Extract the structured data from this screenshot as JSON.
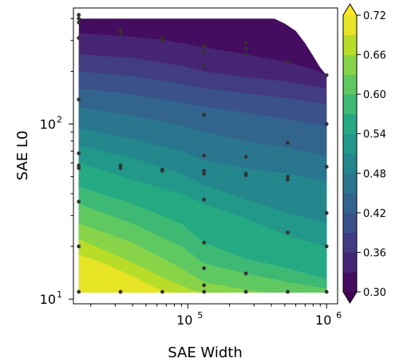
{
  "chart_data": {
    "type": "contour",
    "title": "",
    "xlabel": "SAE Width",
    "ylabel": "SAE L0",
    "x_scale": "log",
    "y_scale": "log",
    "xlim": [
      15000,
      1200000
    ],
    "ylim": [
      9.4,
      460
    ],
    "x_ticks": [
      {
        "value": 100000,
        "base": "10",
        "exp": "5"
      },
      {
        "value": 1000000,
        "base": "10",
        "exp": "6"
      }
    ],
    "y_ticks": [
      {
        "value": 10,
        "base": "10",
        "exp": "1"
      },
      {
        "value": 100,
        "base": "10",
        "exp": "2"
      }
    ],
    "colorbar": {
      "min": 0.3,
      "max": 0.72,
      "step": 0.03,
      "extend": "both",
      "tick_values": [
        0.3,
        0.36,
        0.42,
        0.48,
        0.54,
        0.6,
        0.66,
        0.72
      ],
      "tick_labels": [
        "0.30",
        "0.36",
        "0.42",
        "0.48",
        "0.54",
        "0.60",
        "0.66",
        "0.72"
      ]
    },
    "colormap": "viridis",
    "contour_levels": [
      {
        "value": 0.33,
        "boundary": [
          [
            16384,
            330
          ],
          [
            35000,
            318
          ],
          [
            70000,
            300
          ],
          [
            131072,
            275
          ],
          [
            262144,
            250
          ],
          [
            524288,
            225
          ],
          [
            800000,
            205
          ],
          [
            1000000,
            190
          ]
        ]
      },
      {
        "value": 0.36,
        "boundary": [
          [
            16384,
            250
          ],
          [
            40000,
            238
          ],
          [
            90000,
            215
          ],
          [
            131072,
            200
          ],
          [
            262144,
            185
          ],
          [
            524288,
            175
          ],
          [
            1000000,
            160
          ]
        ]
      },
      {
        "value": 0.39,
        "boundary": [
          [
            16384,
            200
          ],
          [
            40000,
            188
          ],
          [
            90000,
            170
          ],
          [
            131072,
            160
          ],
          [
            262144,
            150
          ],
          [
            524288,
            140
          ],
          [
            1000000,
            130
          ]
        ]
      },
      {
        "value": 0.42,
        "boundary": [
          [
            16384,
            160
          ],
          [
            40000,
            148
          ],
          [
            90000,
            133
          ],
          [
            131072,
            126
          ],
          [
            262144,
            116
          ],
          [
            524288,
            106
          ],
          [
            1000000,
            97
          ]
        ]
      },
      {
        "value": 0.45,
        "boundary": [
          [
            16384,
            125
          ],
          [
            40000,
            112
          ],
          [
            90000,
            98
          ],
          [
            131072,
            90
          ],
          [
            262144,
            80
          ],
          [
            524288,
            73
          ],
          [
            1000000,
            65
          ]
        ]
      },
      {
        "value": 0.48,
        "boundary": [
          [
            16384,
            95
          ],
          [
            40000,
            82
          ],
          [
            90000,
            70
          ],
          [
            131072,
            62
          ],
          [
            262144,
            56
          ],
          [
            524288,
            52
          ],
          [
            1000000,
            47
          ]
        ]
      },
      {
        "value": 0.51,
        "boundary": [
          [
            16384,
            75
          ],
          [
            40000,
            64
          ],
          [
            90000,
            52
          ],
          [
            131072,
            45
          ],
          [
            262144,
            37
          ],
          [
            524288,
            31
          ],
          [
            1000000,
            27
          ]
        ]
      },
      {
        "value": 0.54,
        "boundary": [
          [
            16384,
            60
          ],
          [
            40000,
            48
          ],
          [
            90000,
            40
          ],
          [
            131072,
            35
          ],
          [
            262144,
            29
          ],
          [
            524288,
            23
          ],
          [
            1000000,
            20
          ]
        ]
      },
      {
        "value": 0.57,
        "boundary": [
          [
            16384,
            44
          ],
          [
            40000,
            35
          ],
          [
            90000,
            27
          ],
          [
            131072,
            21
          ],
          [
            262144,
            17
          ],
          [
            524288,
            15
          ],
          [
            1000000,
            13
          ]
        ]
      },
      {
        "value": 0.6,
        "boundary": [
          [
            16384,
            35
          ],
          [
            40000,
            27
          ],
          [
            90000,
            20
          ],
          [
            131072,
            16
          ],
          [
            262144,
            14
          ],
          [
            524288,
            12.5
          ],
          [
            1000000,
            11.5
          ]
        ]
      },
      {
        "value": 0.63,
        "boundary": [
          [
            16384,
            27
          ],
          [
            40000,
            21
          ],
          [
            90000,
            15
          ],
          [
            131072,
            12.5
          ],
          [
            262144,
            11.3
          ],
          [
            500000,
            10.6
          ],
          [
            1000000,
            10.2
          ]
        ]
      },
      {
        "value": 0.66,
        "boundary": [
          [
            16384,
            22
          ],
          [
            35000,
            17
          ],
          [
            70000,
            13
          ],
          [
            110000,
            11.2
          ],
          [
            160000,
            10.5
          ],
          [
            1000000,
            10.2
          ]
        ]
      },
      {
        "value": 0.69,
        "boundary": [
          [
            16384,
            18
          ],
          [
            25000,
            16
          ],
          [
            40000,
            13.5
          ],
          [
            60000,
            11.5
          ],
          [
            80000,
            10.7
          ],
          [
            1000000,
            10.5
          ]
        ]
      }
    ],
    "sample_points": [
      {
        "x": 16384,
        "y": 11
      },
      {
        "x": 16384,
        "y": 20
      },
      {
        "x": 16384,
        "y": 36
      },
      {
        "x": 16384,
        "y": 56
      },
      {
        "x": 16384,
        "y": 58
      },
      {
        "x": 16384,
        "y": 68
      },
      {
        "x": 16384,
        "y": 138
      },
      {
        "x": 16384,
        "y": 310
      },
      {
        "x": 16384,
        "y": 380
      },
      {
        "x": 16384,
        "y": 400
      },
      {
        "x": 16384,
        "y": 420
      },
      {
        "x": 32768,
        "y": 11
      },
      {
        "x": 32768,
        "y": 56
      },
      {
        "x": 32768,
        "y": 58
      },
      {
        "x": 32768,
        "y": 330
      },
      {
        "x": 32768,
        "y": 345
      },
      {
        "x": 65536,
        "y": 11
      },
      {
        "x": 65536,
        "y": 54
      },
      {
        "x": 65536,
        "y": 55
      },
      {
        "x": 65536,
        "y": 300
      },
      {
        "x": 65536,
        "y": 310
      },
      {
        "x": 131072,
        "y": 11
      },
      {
        "x": 131072,
        "y": 12
      },
      {
        "x": 131072,
        "y": 15
      },
      {
        "x": 131072,
        "y": 21
      },
      {
        "x": 131072,
        "y": 37
      },
      {
        "x": 131072,
        "y": 52
      },
      {
        "x": 131072,
        "y": 54
      },
      {
        "x": 131072,
        "y": 66
      },
      {
        "x": 131072,
        "y": 113
      },
      {
        "x": 131072,
        "y": 215
      },
      {
        "x": 131072,
        "y": 260
      },
      {
        "x": 131072,
        "y": 280
      },
      {
        "x": 262144,
        "y": 11
      },
      {
        "x": 262144,
        "y": 14
      },
      {
        "x": 262144,
        "y": 51
      },
      {
        "x": 262144,
        "y": 52
      },
      {
        "x": 262144,
        "y": 65
      },
      {
        "x": 262144,
        "y": 250
      },
      {
        "x": 262144,
        "y": 270
      },
      {
        "x": 262144,
        "y": 290
      },
      {
        "x": 524288,
        "y": 11
      },
      {
        "x": 524288,
        "y": 24
      },
      {
        "x": 524288,
        "y": 48
      },
      {
        "x": 524288,
        "y": 50
      },
      {
        "x": 524288,
        "y": 78
      },
      {
        "x": 524288,
        "y": 225
      },
      {
        "x": 1000000,
        "y": 11
      },
      {
        "x": 1000000,
        "y": 20
      },
      {
        "x": 1000000,
        "y": 31
      },
      {
        "x": 1000000,
        "y": 57
      },
      {
        "x": 1000000,
        "y": 100
      },
      {
        "x": 1000000,
        "y": 190
      }
    ],
    "point_color": "#333333",
    "data_boundary": [
      [
        16384,
        10.9
      ],
      [
        1000000,
        10.9
      ],
      [
        1000000,
        190
      ],
      [
        900000,
        210
      ],
      [
        800000,
        245
      ],
      [
        700000,
        290
      ],
      [
        600000,
        340
      ],
      [
        500000,
        375
      ],
      [
        420000,
        400
      ],
      [
        16384,
        400
      ]
    ],
    "grid": false,
    "legend": "none"
  }
}
